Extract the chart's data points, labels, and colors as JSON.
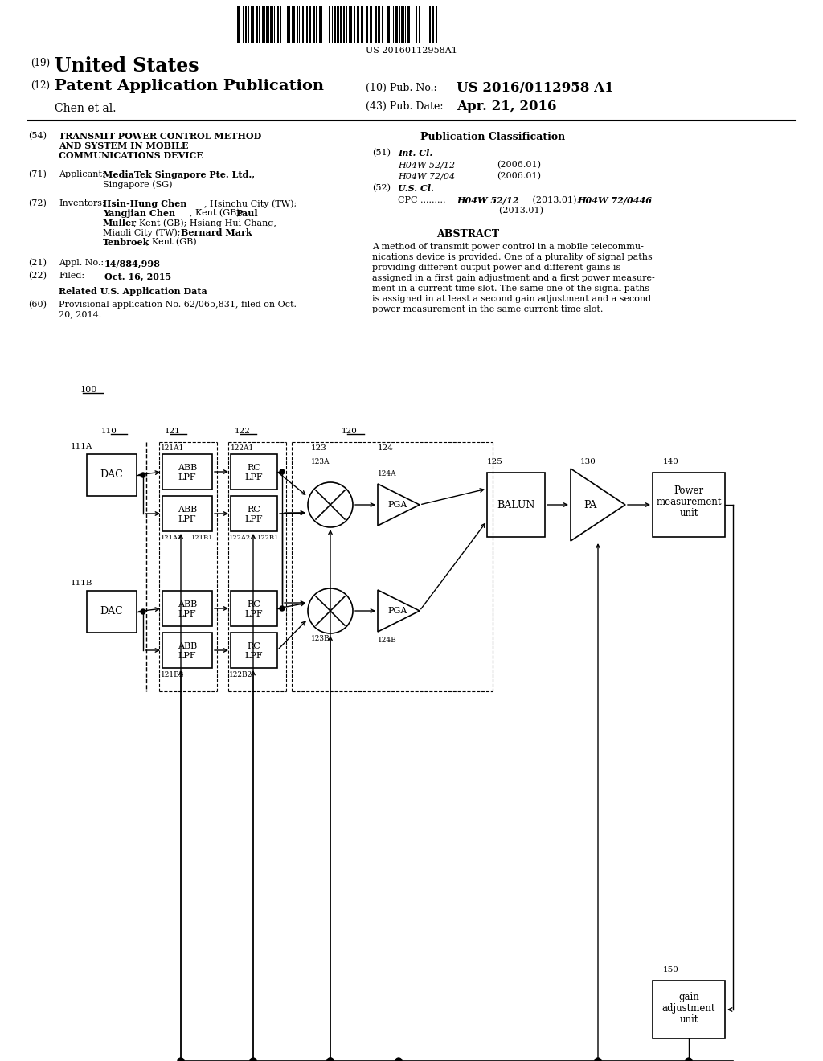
{
  "title_number": "US 20160112958A1",
  "country": "United States",
  "pub_type": "Patent Application Publication",
  "inventor_last": "Chen et al.",
  "pub_no_label": "(10) Pub. No.:",
  "pub_no": "US 2016/0112958 A1",
  "pub_date_label": "(43) Pub. Date:",
  "pub_date": "Apr. 21, 2016",
  "background_color": "#ffffff"
}
